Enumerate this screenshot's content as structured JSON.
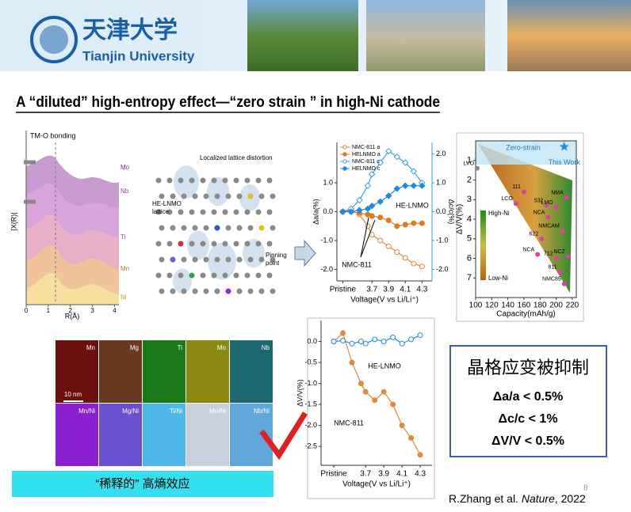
{
  "header": {
    "logo_cn": "天津大学",
    "logo_en": "Tianjin University"
  },
  "title": "A “diluted” high-entropy effect—“zero strain ” in high-Ni cathode",
  "exafs": {
    "annotation": "TM-O bonding",
    "ylabel": "|X(R)|",
    "xlabel": "R(Å)",
    "xlim": [
      0,
      4.2
    ],
    "xticks": [
      0,
      1,
      2,
      3,
      4
    ],
    "series": [
      "Mo",
      "Nb",
      "Ti",
      "Mn",
      "Ni"
    ]
  },
  "lattice": {
    "label": [
      "HE-LNMO",
      "lattice"
    ],
    "distortion": "Localized lattice distortion",
    "pinning": [
      "Pinning",
      "point"
    ]
  },
  "maps": {
    "labels": [
      "Mn",
      "Mg",
      "Ti",
      "Mo",
      "Nb",
      "Mn/Ni",
      "Mg/Ni",
      "Ti/Ni",
      "Mo/Ni",
      "Nb/Ni"
    ],
    "scale": "10 nm"
  },
  "effect": "“稀释的” 高熵效应",
  "summary": {
    "title": "晶格应变被抑制",
    "lines": [
      "Δa/a < 0.5%",
      "Δc/c < 1%",
      "ΔV/V < 0.5%"
    ]
  },
  "citation": {
    "authors": "R.Zhang et al. ",
    "journal": "Nature",
    "year": ", 2022"
  },
  "page_number": "8",
  "chart_data": [
    {
      "type": "line",
      "ylabel": "Δa/a(%)",
      "y2label": "Δc/c(%)",
      "xlabel": "Voltage(V vs Li/Li⁺)",
      "legend": true,
      "xlim": [
        3.28,
        4.42
      ],
      "xticks": [
        {
          "value": 3.35,
          "label": "Pristine"
        },
        3.7,
        3.9,
        4.1,
        4.3
      ],
      "ylim": [
        -2.4,
        2.4
      ],
      "yticks": [
        {
          "value": 1,
          "label": "1.0"
        },
        {
          "value": 0,
          "label": "0.0"
        },
        {
          "value": -1,
          "label": "-1.0"
        },
        {
          "value": -2,
          "label": "-2.0"
        }
      ],
      "y2lim": [
        -2.4,
        2.4
      ],
      "y2ticks": [
        {
          "value": 2,
          "label": "2.0"
        },
        {
          "value": 1,
          "label": "1.0"
        },
        {
          "value": 0,
          "label": "0.0"
        },
        {
          "value": -1,
          "label": "-1.0"
        },
        {
          "value": -2,
          "label": "-2.0"
        }
      ],
      "x": [
        3.35,
        3.45,
        3.55,
        3.65,
        3.7,
        3.8,
        3.9,
        4.0,
        4.1,
        4.2,
        4.3
      ],
      "series": [
        {
          "name": "NMC-811  a",
          "color": "#e08a3a",
          "marker": "circle",
          "filled": false,
          "values": [
            0,
            0.05,
            -0.1,
            -0.5,
            -0.8,
            -1.0,
            -1.2,
            -1.4,
            -1.6,
            -1.8,
            -1.9
          ]
        },
        {
          "name": "HELNMO  a",
          "color": "#e07a20",
          "marker": "circle",
          "filled": true,
          "values": [
            0,
            0,
            -0.05,
            -0.1,
            -0.15,
            -0.2,
            -0.3,
            -0.5,
            -0.45,
            -0.4,
            -0.4
          ]
        },
        {
          "name": "NMC-811  c",
          "color": "#3aa0e0",
          "marker": "diamond",
          "filled": false,
          "axis": "y2",
          "values": [
            0,
            0.1,
            0.4,
            0.9,
            1.3,
            1.7,
            2.1,
            1.9,
            1.7,
            1.4,
            1.0
          ]
        },
        {
          "name": "HELNMO  c",
          "color": "#1e88e5",
          "marker": "diamond",
          "filled": true,
          "axis": "y2",
          "values": [
            0,
            0,
            0.05,
            0.1,
            0.2,
            0.35,
            0.55,
            0.8,
            0.9,
            0.9,
            0.9
          ]
        }
      ],
      "annotations": [
        "NMC-811",
        "HE-LNMO"
      ]
    },
    {
      "type": "line",
      "ylabel": "ΔV/V(%)",
      "xlabel": "Voltage(V vs Li/Li⁺)",
      "legend": false,
      "xlim": [
        3.21,
        4.43
      ],
      "xticks": [
        {
          "value": 3.35,
          "label": "Pristine"
        },
        3.7,
        3.9,
        4.1,
        4.3
      ],
      "ylim": [
        -2.95,
        0.5
      ],
      "yticks": [
        {
          "value": 0,
          "label": "0.0"
        },
        {
          "value": -0.5,
          "label": "-0.5"
        },
        {
          "value": -1,
          "label": "-1.0"
        },
        {
          "value": -1.5,
          "label": "-1.5"
        },
        {
          "value": -2,
          "label": "-2.0"
        },
        {
          "value": -2.5,
          "label": "-2.5"
        }
      ],
      "x": [
        3.35,
        3.45,
        3.55,
        3.65,
        3.7,
        3.8,
        3.9,
        4.0,
        4.1,
        4.2,
        4.3
      ],
      "series": [
        {
          "name": "NMC-811",
          "color": "#e08a3a",
          "marker": "circle",
          "filled": true,
          "values": [
            0,
            0.2,
            -0.5,
            -1.0,
            -1.2,
            -1.4,
            -1.2,
            -1.5,
            -2.0,
            -2.3,
            -2.7
          ]
        },
        {
          "name": "HE-LNMO",
          "color": "#1e88e5",
          "marker": "circle",
          "filled": false,
          "values": [
            0,
            0.02,
            -0.05,
            0,
            -0.05,
            0.05,
            0,
            0.1,
            -0.05,
            0.05,
            0.15
          ]
        }
      ]
    },
    {
      "type": "scatter",
      "xlabel": "Capacity(mAh/g)",
      "ylabel": "ΔV/V(%)",
      "xlim": [
        100,
        225
      ],
      "ylim": [
        8,
        0
      ],
      "xticks": [
        100,
        120,
        140,
        160,
        180,
        200,
        220
      ],
      "yticks": [
        1,
        2,
        3,
        4,
        5,
        6,
        7
      ],
      "color": "#e040a0",
      "zero_strain": "Zero-strain",
      "colorbar": [
        "High-Ni",
        "Low-Ni"
      ],
      "star": {
        "label": "This Work",
        "x": 210,
        "y": 0.3
      },
      "points": [
        {
          "label": "LVO",
          "x": 102,
          "y": 1.4
        },
        {
          "label": "LCO",
          "x": 150,
          "y": 3.2
        },
        {
          "label": "111",
          "x": 160,
          "y": 2.6
        },
        {
          "label": "532",
          "x": 188,
          "y": 3.3
        },
        {
          "label": "LMO",
          "x": 200,
          "y": 3.4
        },
        {
          "label": "NCA",
          "x": 190,
          "y": 3.9
        },
        {
          "label": "NMA",
          "x": 213,
          "y": 2.9
        },
        {
          "label": "NMCAM",
          "x": 208,
          "y": 4.6
        },
        {
          "label": "622",
          "x": 182,
          "y": 5.0
        },
        {
          "label": "NCA",
          "x": 177,
          "y": 5.8
        },
        {
          "label": "712",
          "x": 200,
          "y": 6.0
        },
        {
          "label": "811",
          "x": 205,
          "y": 6.7
        },
        {
          "label": "NCZ",
          "x": 215,
          "y": 5.9
        },
        {
          "label": "NMC85",
          "x": 210,
          "y": 7.3
        }
      ]
    }
  ]
}
